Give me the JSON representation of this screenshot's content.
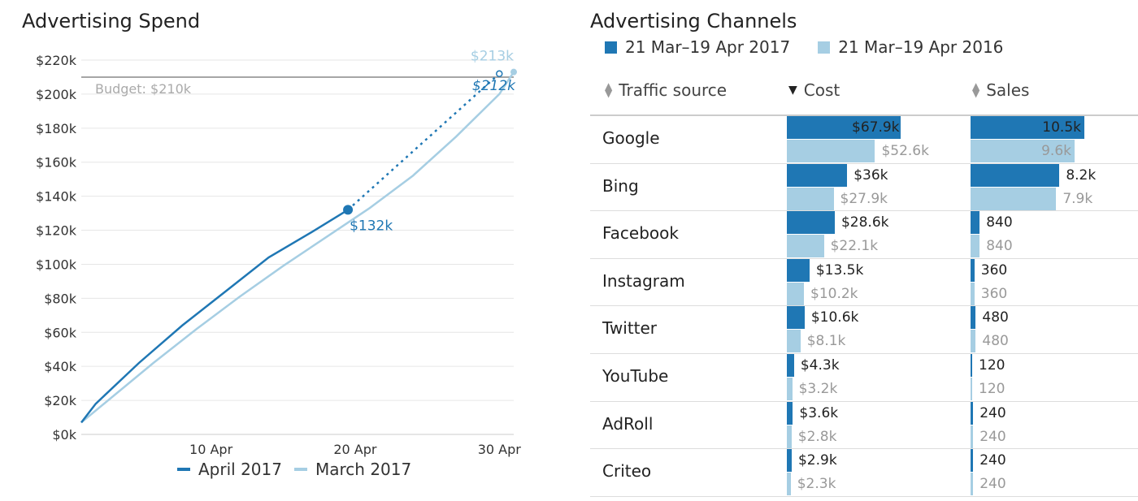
{
  "left": {
    "title": "Advertising Spend",
    "legend": [
      "April 2017",
      "March 2017"
    ],
    "budget_label": "Budget: $210k"
  },
  "right": {
    "title": "Advertising Channels",
    "legend": [
      "21 Mar–19 Apr 2017",
      "21 Mar–19 Apr 2016"
    ],
    "headers": {
      "source": "Traffic source",
      "cost": "Cost",
      "sales": "Sales"
    }
  },
  "colors": {
    "dark": "#1f77b4",
    "light": "#a6cee3",
    "grey": "#999999"
  },
  "chart_data": [
    {
      "type": "line",
      "title": "Advertising Spend",
      "x_ticks": [
        "10 Apr",
        "20 Apr",
        "30 Apr"
      ],
      "y_ticks": [
        "$0k",
        "$20k",
        "$40k",
        "$60k",
        "$80k",
        "$100k",
        "$120k",
        "$140k",
        "$160k",
        "$180k",
        "$200k",
        "$220k"
      ],
      "ylim": [
        0,
        220
      ],
      "xlim": [
        1,
        31
      ],
      "grid": true,
      "legend_position": "bottom",
      "budget": 210,
      "series": [
        {
          "name": "April 2017",
          "x": [
            1,
            2,
            5,
            8,
            11,
            14,
            17,
            19.5
          ],
          "y": [
            7,
            18,
            42,
            64,
            84,
            104,
            119,
            132
          ],
          "projection": {
            "x": [
              19.5,
              30
            ],
            "y": [
              132,
              212
            ]
          },
          "labels": [
            "$132k",
            "$212k"
          ]
        },
        {
          "name": "March 2017",
          "x": [
            1,
            3,
            6,
            9,
            12,
            15,
            18,
            21,
            24,
            27,
            30,
            31
          ],
          "y": [
            7,
            21,
            42,
            62,
            81,
            99,
            116,
            133,
            152,
            175,
            200,
            213
          ],
          "labels": [
            "$213k"
          ]
        }
      ]
    },
    {
      "type": "bar",
      "title": "Advertising Channels",
      "categories": [
        "Google",
        "Bing",
        "Facebook",
        "Instagram",
        "Twitter",
        "YouTube",
        "AdRoll",
        "Criteo"
      ],
      "cost": {
        "series": [
          {
            "name": "21 Mar–19 Apr 2017",
            "values": [
              67.9,
              36,
              28.6,
              13.5,
              10.6,
              4.3,
              3.6,
              2.9
            ],
            "labels": [
              "$67.9k",
              "$36k",
              "$28.6k",
              "$13.5k",
              "$10.6k",
              "$4.3k",
              "$3.6k",
              "$2.9k"
            ]
          },
          {
            "name": "21 Mar–19 Apr 2016",
            "values": [
              52.6,
              27.9,
              22.1,
              10.2,
              8.1,
              3.2,
              2.8,
              2.3
            ],
            "labels": [
              "$52.6k",
              "$27.9k",
              "$22.1k",
              "$10.2k",
              "$8.1k",
              "$3.2k",
              "$2.8k",
              "$2.3k"
            ]
          }
        ]
      },
      "sales": {
        "series": [
          {
            "name": "21 Mar–19 Apr 2017",
            "values": [
              10500,
              8200,
              840,
              360,
              480,
              120,
              240,
              240
            ],
            "labels": [
              "10.5k",
              "8.2k",
              "840",
              "360",
              "480",
              "120",
              "240",
              "240"
            ]
          },
          {
            "name": "21 Mar–19 Apr 2016",
            "values": [
              9600,
              7900,
              840,
              360,
              480,
              120,
              240,
              240
            ],
            "labels": [
              "9.6k",
              "7.9k",
              "840",
              "360",
              "480",
              "120",
              "240",
              "240"
            ]
          }
        ]
      }
    }
  ]
}
